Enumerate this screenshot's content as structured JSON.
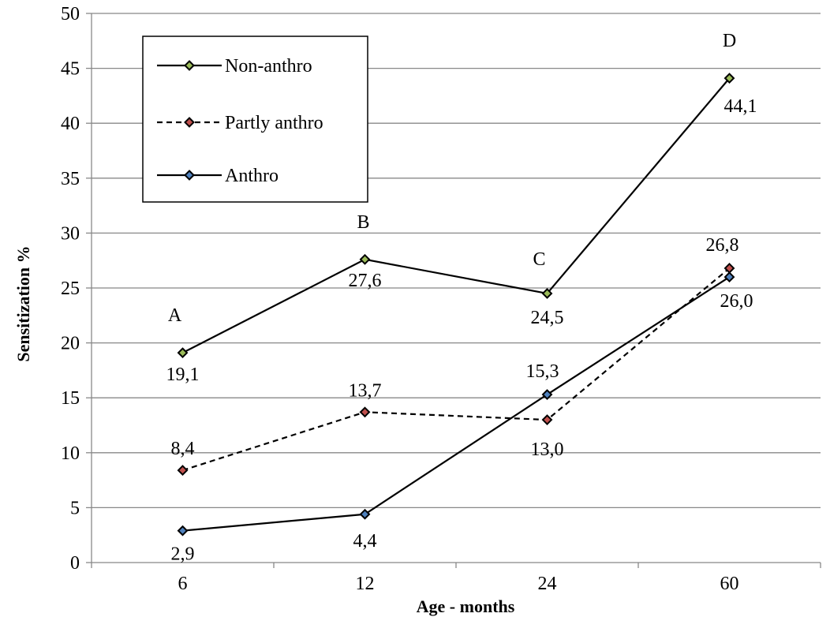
{
  "chart_data": {
    "type": "line",
    "categories": [
      "6",
      "12",
      "24",
      "60"
    ],
    "xlabel": "Age - months",
    "ylabel": "Sensitization %",
    "ylim": [
      0,
      50
    ],
    "ytick_step": 5,
    "ytick_labels": [
      "0",
      "5",
      "10",
      "15",
      "20",
      "25",
      "30",
      "35",
      "40",
      "45",
      "50"
    ],
    "grid": "horizontal",
    "legend_position": "top-left",
    "series": [
      {
        "name": "Non-anthro",
        "values": [
          19.1,
          27.6,
          24.5,
          44.1
        ],
        "labels": [
          "19,1",
          "27,6",
          "24,5",
          "44,1"
        ],
        "line_style": "solid",
        "marker_color": "#9bbb59"
      },
      {
        "name": "Partly anthro",
        "values": [
          8.4,
          13.7,
          13.0,
          26.8
        ],
        "labels": [
          "8,4",
          "13,7",
          "13,0",
          "26,8"
        ],
        "line_style": "dashed",
        "marker_color": "#c0504d"
      },
      {
        "name": "Anthro",
        "values": [
          2.9,
          4.4,
          15.3,
          26.0
        ],
        "labels": [
          "2,9",
          "4,4",
          "15,3",
          "26,0"
        ],
        "line_style": "solid",
        "marker_color": "#4f81bd"
      }
    ],
    "point_letters": [
      "A",
      "B",
      "C",
      "D"
    ],
    "colors": {
      "line": "#000000",
      "grid": "#888888"
    }
  }
}
